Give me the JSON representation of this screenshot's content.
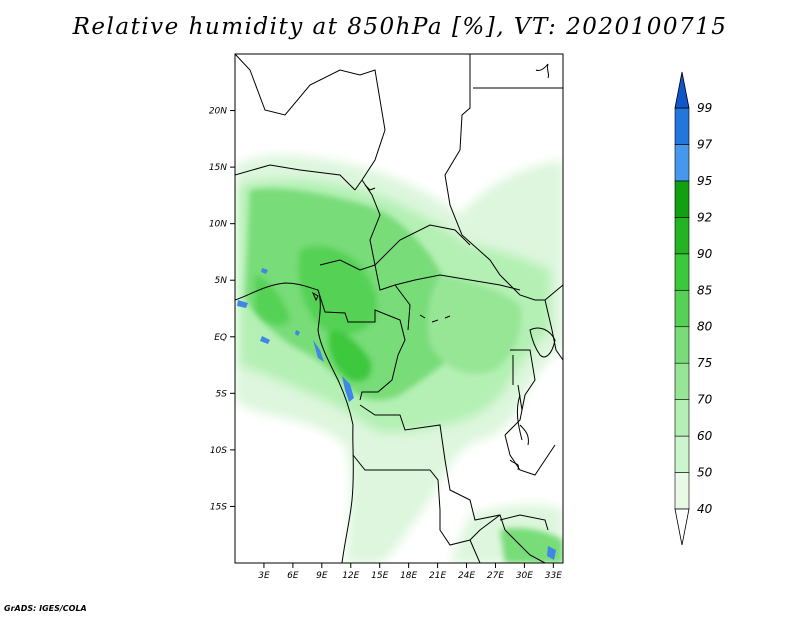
{
  "title": "Relative humidity at 850hPa [%], VT: 2020100715",
  "credit": "GrADS: IGES/COLA",
  "map": {
    "projection": "lat-lon",
    "lon_range": [
      0,
      34
    ],
    "lat_range": [
      -20,
      25
    ],
    "lat_ticks": [
      {
        "value": 20,
        "label": "20N"
      },
      {
        "value": 15,
        "label": "15N"
      },
      {
        "value": 10,
        "label": "10N"
      },
      {
        "value": 5,
        "label": "5N"
      },
      {
        "value": 0,
        "label": "EQ"
      },
      {
        "value": -5,
        "label": "5S"
      },
      {
        "value": -10,
        "label": "10S"
      },
      {
        "value": -15,
        "label": "15S"
      }
    ],
    "lon_ticks": [
      {
        "value": 3,
        "label": "3E"
      },
      {
        "value": 6,
        "label": "6E"
      },
      {
        "value": 9,
        "label": "9E"
      },
      {
        "value": 12,
        "label": "12E"
      },
      {
        "value": 15,
        "label": "15E"
      },
      {
        "value": 18,
        "label": "18E"
      },
      {
        "value": 21,
        "label": "21E"
      },
      {
        "value": 24,
        "label": "24E"
      },
      {
        "value": 27,
        "label": "27E"
      },
      {
        "value": 30,
        "label": "30E"
      },
      {
        "value": 33,
        "label": "33E"
      }
    ]
  },
  "colorbar": {
    "levels": [
      "40",
      "50",
      "60",
      "70",
      "75",
      "80",
      "85",
      "90",
      "92",
      "95",
      "97",
      "99"
    ],
    "colors": [
      "#ffffff",
      "#e6fae6",
      "#cdf5cd",
      "#b4f0b4",
      "#96e696",
      "#78dc78",
      "#55d255",
      "#3cc83c",
      "#22b422",
      "#10a010",
      "#4499ee",
      "#2277dd",
      "#1155cc"
    ]
  }
}
